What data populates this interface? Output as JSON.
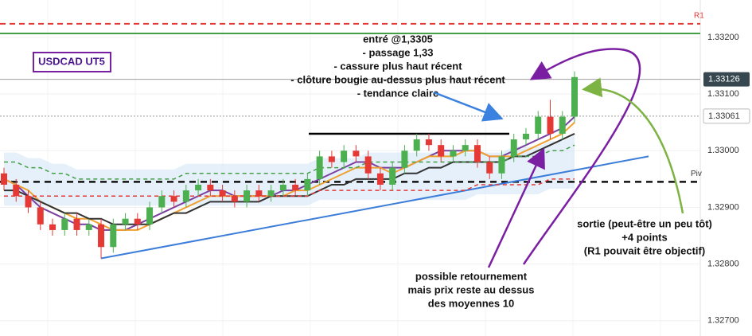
{
  "chart_data": {
    "type": "candlestick",
    "title": "USDCAD UT5",
    "ylim": [
      1.32673,
      1.33266
    ],
    "yticks": [
      {
        "value": 1.327,
        "label": "1.32700"
      },
      {
        "value": 1.328,
        "label": "1.32800"
      },
      {
        "value": 1.329,
        "label": "1.32900"
      },
      {
        "value": 1.33,
        "label": "1.33000"
      },
      {
        "value": 1.331,
        "label": "1.33100"
      },
      {
        "value": 1.332,
        "label": "1.33200"
      }
    ],
    "up_color": "#4caf50",
    "down_color": "#e53935",
    "open": [
      1.3296,
      1.3294,
      1.3292,
      1.329,
      1.3287,
      1.3286,
      1.3288,
      1.3286,
      1.3287,
      1.3283,
      1.3287,
      1.3288,
      1.3287,
      1.329,
      1.3292,
      1.3291,
      1.3293,
      1.3294,
      1.3293,
      1.3292,
      1.3291,
      1.3293,
      1.3292,
      1.3293,
      1.3294,
      1.3293,
      1.3295,
      1.3299,
      1.3298,
      1.33,
      1.3299,
      1.3296,
      1.3294,
      1.3297,
      1.33,
      1.3302,
      1.3301,
      1.3299,
      1.33,
      1.3301,
      1.3298,
      1.3296,
      1.3299,
      1.3302,
      1.3303,
      1.3306,
      1.3303,
      1.3306
    ],
    "high": [
      1.3297,
      1.3295,
      1.3293,
      1.3291,
      1.3288,
      1.3289,
      1.3289,
      1.3288,
      1.3288,
      1.3288,
      1.3289,
      1.3289,
      1.3291,
      1.3293,
      1.3293,
      1.3294,
      1.3295,
      1.3295,
      1.3294,
      1.3293,
      1.3294,
      1.3294,
      1.3294,
      1.3295,
      1.3295,
      1.3296,
      1.33,
      1.33,
      1.3301,
      1.3301,
      1.33,
      1.3297,
      1.3298,
      1.3301,
      1.3303,
      1.3303,
      1.3302,
      1.3301,
      1.3302,
      1.3302,
      1.3299,
      1.33,
      1.3303,
      1.3304,
      1.3307,
      1.3309,
      1.3307,
      1.3314
    ],
    "low": [
      1.3293,
      1.3291,
      1.3289,
      1.3286,
      1.3285,
      1.3285,
      1.3285,
      1.3285,
      1.3281,
      1.3282,
      1.3286,
      1.3286,
      1.3286,
      1.3289,
      1.329,
      1.329,
      1.3292,
      1.3292,
      1.3291,
      1.329,
      1.329,
      1.3291,
      1.3291,
      1.3292,
      1.3292,
      1.3292,
      1.3294,
      1.3297,
      1.3297,
      1.3298,
      1.3295,
      1.3293,
      1.3293,
      1.3296,
      1.3299,
      1.33,
      1.3298,
      1.3298,
      1.3299,
      1.3297,
      1.3295,
      1.3295,
      1.3298,
      1.3301,
      1.3302,
      1.3302,
      1.3302,
      1.3305
    ],
    "close": [
      1.3294,
      1.3292,
      1.329,
      1.3287,
      1.3286,
      1.3288,
      1.3286,
      1.3287,
      1.3283,
      1.3287,
      1.3288,
      1.3287,
      1.329,
      1.3292,
      1.3291,
      1.3293,
      1.3294,
      1.3293,
      1.3292,
      1.3291,
      1.3293,
      1.3292,
      1.3293,
      1.3294,
      1.3293,
      1.3295,
      1.3299,
      1.3298,
      1.33,
      1.3299,
      1.3296,
      1.3294,
      1.3297,
      1.33,
      1.3302,
      1.3301,
      1.3299,
      1.33,
      1.3301,
      1.3298,
      1.3296,
      1.3299,
      1.3302,
      1.3303,
      1.3306,
      1.3303,
      1.3306,
      1.3313
    ],
    "series": [
      {
        "color": "#7b3fa0",
        "values": [
          1.3295,
          1.3294,
          1.3292,
          1.329,
          1.3289,
          1.3288,
          1.3287,
          1.3287,
          1.3286,
          1.3286,
          1.3286,
          1.3287,
          1.3288,
          1.3289,
          1.329,
          1.3291,
          1.3292,
          1.3293,
          1.3293,
          1.3292,
          1.3292,
          1.3292,
          1.3292,
          1.3293,
          1.3293,
          1.3294,
          1.3295,
          1.3296,
          1.3297,
          1.3298,
          1.3298,
          1.3297,
          1.3297,
          1.3297,
          1.3298,
          1.3299,
          1.33,
          1.33,
          1.33,
          1.33,
          1.3299,
          1.3299,
          1.33,
          1.3301,
          1.3302,
          1.3303,
          1.3304,
          1.3306
        ]
      },
      {
        "color": "#f0a030",
        "values": [
          1.3295,
          1.3294,
          1.3293,
          1.3291,
          1.329,
          1.3289,
          1.3288,
          1.3288,
          1.3287,
          1.3286,
          1.3286,
          1.3286,
          1.3287,
          1.3288,
          1.3289,
          1.329,
          1.3291,
          1.3292,
          1.3292,
          1.3292,
          1.3292,
          1.3292,
          1.3292,
          1.3292,
          1.3293,
          1.3293,
          1.3294,
          1.3295,
          1.3296,
          1.3297,
          1.3297,
          1.3297,
          1.3296,
          1.3297,
          1.3298,
          1.3299,
          1.3299,
          1.3299,
          1.33,
          1.33,
          1.3299,
          1.3299,
          1.3299,
          1.33,
          1.3301,
          1.3302,
          1.3303,
          1.3305
        ]
      },
      {
        "color": "#333333",
        "values": [
          1.3293,
          1.3293,
          1.3292,
          1.3291,
          1.329,
          1.3289,
          1.3289,
          1.3288,
          1.3288,
          1.3287,
          1.3287,
          1.3287,
          1.3287,
          1.3288,
          1.3289,
          1.3289,
          1.329,
          1.3291,
          1.3291,
          1.3291,
          1.3291,
          1.3291,
          1.3292,
          1.3292,
          1.3292,
          1.3292,
          1.3293,
          1.3294,
          1.3294,
          1.3295,
          1.3295,
          1.3295,
          1.3295,
          1.3296,
          1.3296,
          1.3297,
          1.3297,
          1.3298,
          1.3298,
          1.3298,
          1.3298,
          1.3298,
          1.3299,
          1.3299,
          1.33,
          1.3301,
          1.3302,
          1.3303
        ]
      },
      {
        "color": "#43a047",
        "dashed": true,
        "values": [
          1.3298,
          1.3298,
          1.3297,
          1.3297,
          1.3296,
          1.3296,
          1.3295,
          1.3295,
          1.3295,
          1.3295,
          1.3295,
          1.3295,
          1.3295,
          1.3295,
          1.3295,
          1.3296,
          1.3296,
          1.3296,
          1.3296,
          1.3296,
          1.3296,
          1.3296,
          1.3296,
          1.3296,
          1.3296,
          1.3296,
          1.3297,
          1.3297,
          1.3297,
          1.3297,
          1.3298,
          1.3298,
          1.3298,
          1.3298,
          1.3298,
          1.3298,
          1.3298,
          1.3298,
          1.3298,
          1.3298,
          1.3298,
          1.3298,
          1.3299,
          1.3299,
          1.3299,
          1.33,
          1.33,
          1.3301
        ]
      },
      {
        "color": "#e53935",
        "dashed": true,
        "values": [
          1.3292,
          1.3292,
          1.3292,
          1.3292,
          1.3292,
          1.3292,
          1.3292,
          1.3292,
          1.3292,
          1.3292,
          1.3292,
          1.3292,
          1.3292,
          1.3292,
          1.3292,
          1.3292,
          1.3292,
          1.3292,
          1.3292,
          1.3292,
          1.3292,
          1.3292,
          1.3292,
          1.3292,
          1.3292,
          1.3292,
          1.3293,
          1.3293,
          1.3293,
          1.3293,
          1.3293,
          1.3293,
          1.3293,
          1.3293,
          1.3293,
          1.3293,
          1.3293,
          1.3293,
          1.3293,
          1.3294,
          1.3294,
          1.3294,
          1.3294,
          1.3294,
          1.3294,
          1.3295,
          1.3295,
          1.3295
        ]
      }
    ],
    "r1": {
      "value": 1.33224,
      "label": "R1"
    },
    "r1_line": 1.33207,
    "pivot": {
      "value": 1.32945,
      "label": "Piv"
    },
    "last_price": 1.33126,
    "entry_price": 1.33061,
    "resistance": 1.3303,
    "trendline": [
      1.3281,
      1.3299
    ],
    "notes": {
      "entry": [
        "entré @1,3305",
        "- passage 1,33",
        "- cassure plus haut récent",
        "- clôture bougie au-dessus plus haut récent",
        "- tendance claire"
      ],
      "reversal": [
        "possible retournement",
        "mais prix reste au dessus",
        "des moyennes 10"
      ],
      "exit": [
        "sortie (peut-être un peu tôt)",
        "+4 points",
        "(R1 pouvait être objectif)"
      ]
    }
  }
}
